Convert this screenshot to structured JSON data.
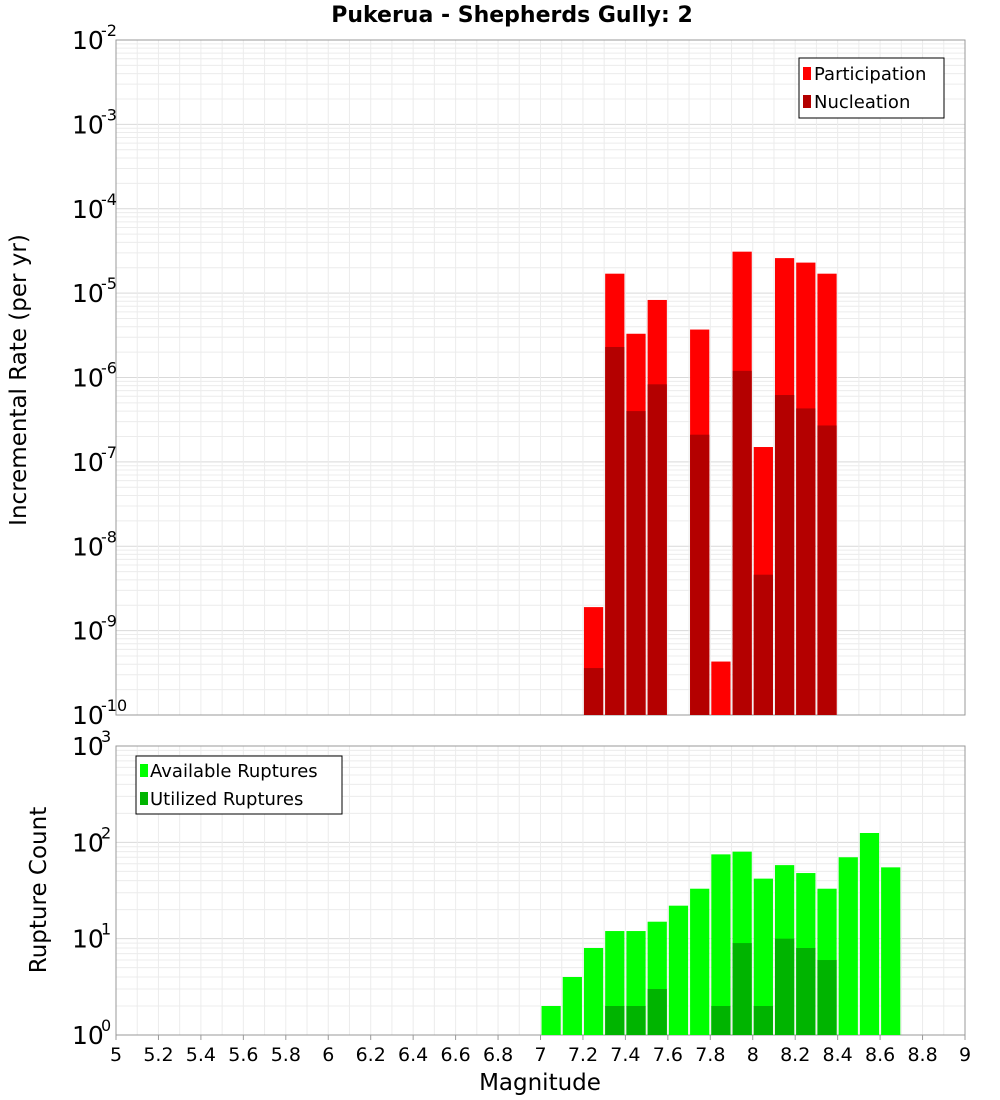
{
  "chart_data": [
    {
      "type": "bar",
      "title": "Pukerua - Shepherds Gully: 2",
      "ylabel": "Incremental Rate (per yr)",
      "xlabel": "",
      "yscale": "log",
      "ylim_exponents": [
        -10,
        -2
      ],
      "xlim": [
        5,
        9
      ],
      "legend_position": "top-right",
      "legend": [
        "Participation",
        "Nucleation"
      ],
      "colors": {
        "Participation": "#ff0000",
        "Nucleation": "#b40000"
      },
      "series": [
        {
          "name": "Participation",
          "x": [
            7.25,
            7.35,
            7.45,
            7.55,
            7.75,
            7.85,
            7.95,
            8.05,
            8.15,
            8.25,
            8.35
          ],
          "values": [
            1.9e-09,
            1.7e-05,
            3.3e-06,
            8.3e-06,
            3.7e-06,
            4.3e-10,
            3.1e-05,
            1.5e-07,
            2.6e-05,
            2.3e-05,
            1.7e-05
          ]
        },
        {
          "name": "Nucleation",
          "x": [
            7.25,
            7.35,
            7.45,
            7.55,
            7.75,
            7.95,
            8.05,
            8.15,
            8.25,
            8.35
          ],
          "values": [
            3.6e-10,
            2.3e-06,
            4e-07,
            8.3e-07,
            2.1e-07,
            1.2e-06,
            4.6e-09,
            6.2e-07,
            4.3e-07,
            2.7e-07
          ]
        }
      ]
    },
    {
      "type": "bar",
      "ylabel": "Rupture Count",
      "xlabel": "Magnitude",
      "yscale": "log",
      "ylim_exponents": [
        0,
        3
      ],
      "xlim": [
        5,
        9
      ],
      "legend_position": "top-left",
      "legend": [
        "Available Ruptures",
        "Utilized Ruptures"
      ],
      "colors": {
        "Available Ruptures": "#00ff00",
        "Utilized Ruptures": "#00b400"
      },
      "series": [
        {
          "name": "Available Ruptures",
          "x": [
            6.55,
            6.85,
            6.95,
            7.05,
            7.15,
            7.25,
            7.35,
            7.45,
            7.55,
            7.65,
            7.75,
            7.85,
            7.95,
            8.05,
            8.15,
            8.25,
            8.35,
            8.45,
            8.55,
            8.65
          ],
          "values": [
            1,
            1,
            1,
            2,
            4,
            8,
            12,
            12,
            15,
            22,
            33,
            75,
            80,
            42,
            58,
            48,
            33,
            70,
            125,
            55
          ]
        },
        {
          "name": "Utilized Ruptures",
          "x": [
            7.25,
            7.35,
            7.45,
            7.55,
            7.75,
            7.85,
            7.95,
            8.05,
            8.15,
            8.25,
            8.35
          ],
          "values": [
            1,
            2,
            2,
            3,
            1,
            2,
            9,
            2,
            10,
            8,
            6
          ]
        }
      ],
      "xticks": [
        "5",
        "5.2",
        "5.4",
        "5.6",
        "5.8",
        "6",
        "6.2",
        "6.4",
        "6.6",
        "6.8",
        "7",
        "7.2",
        "7.4",
        "7.6",
        "7.8",
        "8",
        "8.2",
        "8.4",
        "8.6",
        "8.8",
        "9"
      ]
    }
  ]
}
